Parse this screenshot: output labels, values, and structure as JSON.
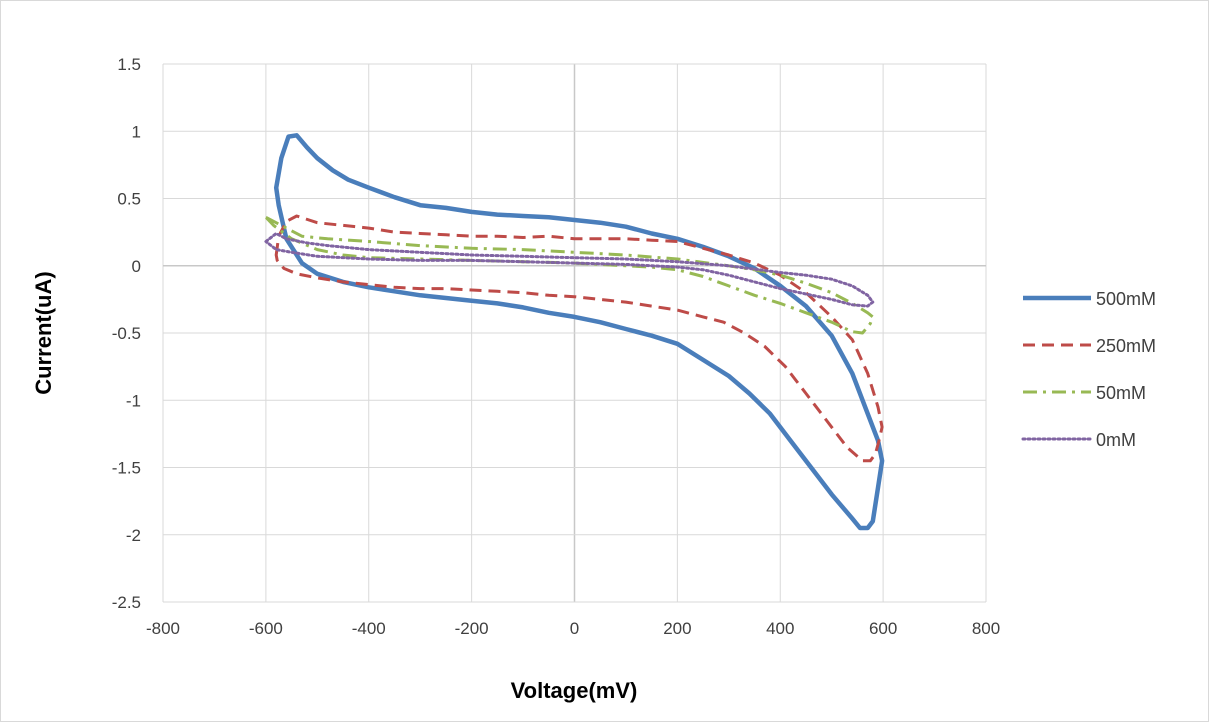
{
  "chart_data": {
    "type": "line",
    "xlabel": "Voltage(mV)",
    "ylabel": "Current(uA)",
    "xlim": [
      -800,
      800
    ],
    "ylim": [
      -2.5,
      1.5
    ],
    "x_ticks": [
      -800,
      -600,
      -400,
      -200,
      0,
      200,
      400,
      600,
      800
    ],
    "y_ticks": [
      1.5,
      1,
      0.5,
      0,
      -0.5,
      -1,
      -1.5,
      -2,
      -2.5
    ],
    "grid": true,
    "legend_position": "right",
    "series": [
      {
        "name": "500mM",
        "color": "#4a7ebb",
        "style": "solid",
        "points": [
          [
            -580,
            0.58
          ],
          [
            -570,
            0.8
          ],
          [
            -556,
            0.96
          ],
          [
            -540,
            0.97
          ],
          [
            -520,
            0.88
          ],
          [
            -500,
            0.8
          ],
          [
            -470,
            0.71
          ],
          [
            -440,
            0.64
          ],
          [
            -400,
            0.58
          ],
          [
            -350,
            0.51
          ],
          [
            -300,
            0.45
          ],
          [
            -250,
            0.43
          ],
          [
            -200,
            0.4
          ],
          [
            -150,
            0.38
          ],
          [
            -100,
            0.37
          ],
          [
            -50,
            0.36
          ],
          [
            0,
            0.34
          ],
          [
            50,
            0.32
          ],
          [
            100,
            0.29
          ],
          [
            150,
            0.24
          ],
          [
            200,
            0.2
          ],
          [
            250,
            0.14
          ],
          [
            300,
            0.07
          ],
          [
            350,
            -0.02
          ],
          [
            400,
            -0.15
          ],
          [
            450,
            -0.3
          ],
          [
            500,
            -0.52
          ],
          [
            540,
            -0.8
          ],
          [
            570,
            -1.1
          ],
          [
            590,
            -1.3
          ],
          [
            598,
            -1.45
          ],
          [
            590,
            -1.65
          ],
          [
            580,
            -1.9
          ],
          [
            570,
            -1.95
          ],
          [
            555,
            -1.95
          ],
          [
            540,
            -1.88
          ],
          [
            500,
            -1.7
          ],
          [
            460,
            -1.5
          ],
          [
            420,
            -1.3
          ],
          [
            380,
            -1.1
          ],
          [
            340,
            -0.95
          ],
          [
            300,
            -0.82
          ],
          [
            250,
            -0.7
          ],
          [
            200,
            -0.58
          ],
          [
            150,
            -0.52
          ],
          [
            100,
            -0.47
          ],
          [
            50,
            -0.42
          ],
          [
            0,
            -0.38
          ],
          [
            -50,
            -0.35
          ],
          [
            -100,
            -0.31
          ],
          [
            -150,
            -0.28
          ],
          [
            -200,
            -0.26
          ],
          [
            -250,
            -0.24
          ],
          [
            -300,
            -0.22
          ],
          [
            -350,
            -0.19
          ],
          [
            -400,
            -0.16
          ],
          [
            -450,
            -0.12
          ],
          [
            -500,
            -0.06
          ],
          [
            -530,
            0.02
          ],
          [
            -560,
            0.2
          ],
          [
            -575,
            0.45
          ],
          [
            -580,
            0.58
          ]
        ]
      },
      {
        "name": "250mM",
        "color": "#be4b48",
        "style": "dashed",
        "points": [
          [
            -580,
            0.08
          ],
          [
            -575,
            0.22
          ],
          [
            -560,
            0.33
          ],
          [
            -540,
            0.37
          ],
          [
            -500,
            0.32
          ],
          [
            -450,
            0.3
          ],
          [
            -400,
            0.28
          ],
          [
            -350,
            0.25
          ],
          [
            -300,
            0.24
          ],
          [
            -250,
            0.23
          ],
          [
            -200,
            0.22
          ],
          [
            -150,
            0.22
          ],
          [
            -100,
            0.21
          ],
          [
            -50,
            0.22
          ],
          [
            0,
            0.2
          ],
          [
            50,
            0.2
          ],
          [
            100,
            0.2
          ],
          [
            150,
            0.19
          ],
          [
            200,
            0.18
          ],
          [
            250,
            0.13
          ],
          [
            300,
            0.08
          ],
          [
            350,
            0.02
          ],
          [
            400,
            -0.07
          ],
          [
            450,
            -0.2
          ],
          [
            500,
            -0.38
          ],
          [
            540,
            -0.55
          ],
          [
            570,
            -0.8
          ],
          [
            590,
            -1.05
          ],
          [
            598,
            -1.2
          ],
          [
            592,
            -1.3
          ],
          [
            585,
            -1.4
          ],
          [
            575,
            -1.45
          ],
          [
            560,
            -1.45
          ],
          [
            530,
            -1.35
          ],
          [
            490,
            -1.15
          ],
          [
            450,
            -0.95
          ],
          [
            410,
            -0.75
          ],
          [
            370,
            -0.6
          ],
          [
            330,
            -0.5
          ],
          [
            290,
            -0.42
          ],
          [
            250,
            -0.38
          ],
          [
            200,
            -0.33
          ],
          [
            150,
            -0.3
          ],
          [
            100,
            -0.27
          ],
          [
            50,
            -0.25
          ],
          [
            0,
            -0.23
          ],
          [
            -50,
            -0.22
          ],
          [
            -100,
            -0.2
          ],
          [
            -150,
            -0.19
          ],
          [
            -200,
            -0.18
          ],
          [
            -250,
            -0.17
          ],
          [
            -300,
            -0.17
          ],
          [
            -350,
            -0.16
          ],
          [
            -400,
            -0.14
          ],
          [
            -450,
            -0.12
          ],
          [
            -500,
            -0.09
          ],
          [
            -540,
            -0.06
          ],
          [
            -565,
            -0.02
          ],
          [
            -578,
            0.04
          ],
          [
            -580,
            0.08
          ]
        ]
      },
      {
        "name": "50mM",
        "color": "#98b954",
        "style": "dashdot",
        "points": [
          [
            -600,
            0.36
          ],
          [
            -570,
            0.3
          ],
          [
            -530,
            0.22
          ],
          [
            -480,
            0.2
          ],
          [
            -400,
            0.18
          ],
          [
            -300,
            0.15
          ],
          [
            -200,
            0.13
          ],
          [
            -100,
            0.12
          ],
          [
            0,
            0.1
          ],
          [
            100,
            0.08
          ],
          [
            200,
            0.05
          ],
          [
            300,
            0.0
          ],
          [
            350,
            -0.03
          ],
          [
            400,
            -0.07
          ],
          [
            450,
            -0.13
          ],
          [
            500,
            -0.2
          ],
          [
            540,
            -0.28
          ],
          [
            570,
            -0.35
          ],
          [
            580,
            -0.38
          ],
          [
            575,
            -0.43
          ],
          [
            560,
            -0.5
          ],
          [
            540,
            -0.49
          ],
          [
            500,
            -0.42
          ],
          [
            450,
            -0.35
          ],
          [
            400,
            -0.28
          ],
          [
            350,
            -0.22
          ],
          [
            300,
            -0.15
          ],
          [
            250,
            -0.08
          ],
          [
            200,
            -0.03
          ],
          [
            150,
            -0.01
          ],
          [
            100,
            0.0
          ],
          [
            0,
            0.02
          ],
          [
            -100,
            0.03
          ],
          [
            -200,
            0.04
          ],
          [
            -300,
            0.05
          ],
          [
            -400,
            0.06
          ],
          [
            -450,
            0.08
          ],
          [
            -500,
            0.12
          ],
          [
            -550,
            0.2
          ],
          [
            -585,
            0.3
          ],
          [
            -600,
            0.36
          ]
        ]
      },
      {
        "name": "0mM",
        "color": "#8064a2",
        "style": "dotted",
        "points": [
          [
            -600,
            0.18
          ],
          [
            -580,
            0.24
          ],
          [
            -560,
            0.2
          ],
          [
            -520,
            0.17
          ],
          [
            -480,
            0.15
          ],
          [
            -400,
            0.12
          ],
          [
            -300,
            0.1
          ],
          [
            -200,
            0.08
          ],
          [
            -100,
            0.07
          ],
          [
            0,
            0.06
          ],
          [
            100,
            0.05
          ],
          [
            200,
            0.03
          ],
          [
            300,
            0.0
          ],
          [
            400,
            -0.05
          ],
          [
            450,
            -0.07
          ],
          [
            500,
            -0.1
          ],
          [
            540,
            -0.15
          ],
          [
            570,
            -0.22
          ],
          [
            580,
            -0.27
          ],
          [
            570,
            -0.3
          ],
          [
            540,
            -0.29
          ],
          [
            500,
            -0.25
          ],
          [
            450,
            -0.21
          ],
          [
            400,
            -0.17
          ],
          [
            350,
            -0.12
          ],
          [
            300,
            -0.07
          ],
          [
            250,
            -0.03
          ],
          [
            200,
            -0.01
          ],
          [
            100,
            0.01
          ],
          [
            0,
            0.02
          ],
          [
            -100,
            0.03
          ],
          [
            -200,
            0.04
          ],
          [
            -300,
            0.04
          ],
          [
            -400,
            0.05
          ],
          [
            -500,
            0.07
          ],
          [
            -550,
            0.1
          ],
          [
            -580,
            0.12
          ],
          [
            -600,
            0.18
          ]
        ]
      }
    ]
  }
}
